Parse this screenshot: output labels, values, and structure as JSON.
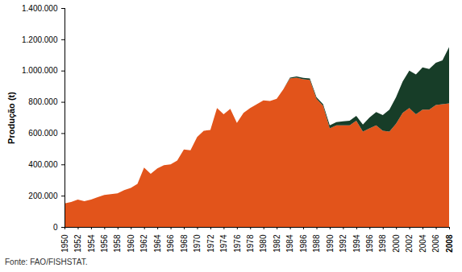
{
  "chart_data": {
    "type": "area",
    "stacked": true,
    "grid": false,
    "y_label": "Produção (t)",
    "caption": "Fonte: FAO/FISHSTAT.",
    "x": [
      1950,
      1951,
      1952,
      1953,
      1954,
      1955,
      1956,
      1957,
      1958,
      1959,
      1960,
      1961,
      1962,
      1963,
      1964,
      1965,
      1966,
      1967,
      1968,
      1969,
      1970,
      1971,
      1972,
      1973,
      1974,
      1975,
      1976,
      1977,
      1978,
      1979,
      1980,
      1981,
      1982,
      1983,
      1984,
      1985,
      1986,
      1987,
      1988,
      1989,
      1990,
      1991,
      1992,
      1993,
      1994,
      1995,
      1996,
      1997,
      1998,
      1999,
      2000,
      2001,
      2002,
      2003,
      2004,
      2005,
      2006,
      2007,
      2008
    ],
    "series": [
      {
        "color": "#e2541b",
        "values": [
          150000,
          160000,
          175000,
          165000,
          175000,
          190000,
          205000,
          210000,
          215000,
          235000,
          250000,
          275000,
          380000,
          340000,
          375000,
          395000,
          400000,
          425000,
          495000,
          490000,
          575000,
          615000,
          620000,
          760000,
          720000,
          755000,
          665000,
          730000,
          760000,
          785000,
          810000,
          805000,
          820000,
          880000,
          950000,
          955000,
          945000,
          940000,
          820000,
          775000,
          630000,
          650000,
          650000,
          650000,
          680000,
          610000,
          630000,
          650000,
          615000,
          610000,
          660000,
          730000,
          760000,
          720000,
          750000,
          750000,
          780000,
          785000,
          790000
        ]
      },
      {
        "color": "#173d28",
        "values": [
          0,
          0,
          0,
          0,
          0,
          0,
          0,
          0,
          0,
          0,
          0,
          0,
          0,
          0,
          0,
          0,
          0,
          0,
          0,
          0,
          0,
          0,
          0,
          0,
          0,
          0,
          0,
          0,
          0,
          0,
          0,
          0,
          0,
          0,
          5000,
          7000,
          8000,
          9000,
          10000,
          10000,
          20000,
          20000,
          25000,
          30000,
          30000,
          45000,
          70000,
          85000,
          100000,
          140000,
          170000,
          200000,
          240000,
          255000,
          270000,
          260000,
          270000,
          280000,
          360000
        ]
      }
    ],
    "xlim": [
      1950,
      2008
    ],
    "xticks": [
      1950,
      1952,
      1954,
      1956,
      1958,
      1960,
      1962,
      1964,
      1966,
      1968,
      1970,
      1972,
      1974,
      1976,
      1978,
      1980,
      1982,
      1984,
      1986,
      1988,
      1990,
      1992,
      1994,
      1996,
      1998,
      2000,
      2002,
      2004,
      2006,
      2008
    ],
    "ylim": [
      0,
      1400000
    ],
    "yticks": [
      0,
      {
        "value": 200000,
        "label": "200.000"
      },
      {
        "value": 400000,
        "label": "400.000"
      },
      {
        "value": 600000,
        "label": "600.000"
      },
      {
        "value": 800000,
        "label": "800.000"
      },
      {
        "value": 1000000,
        "label": "1.000.000"
      },
      {
        "value": 1200000,
        "label": "1.200.000"
      },
      {
        "value": 1400000,
        "label": "1.400.000"
      }
    ]
  }
}
